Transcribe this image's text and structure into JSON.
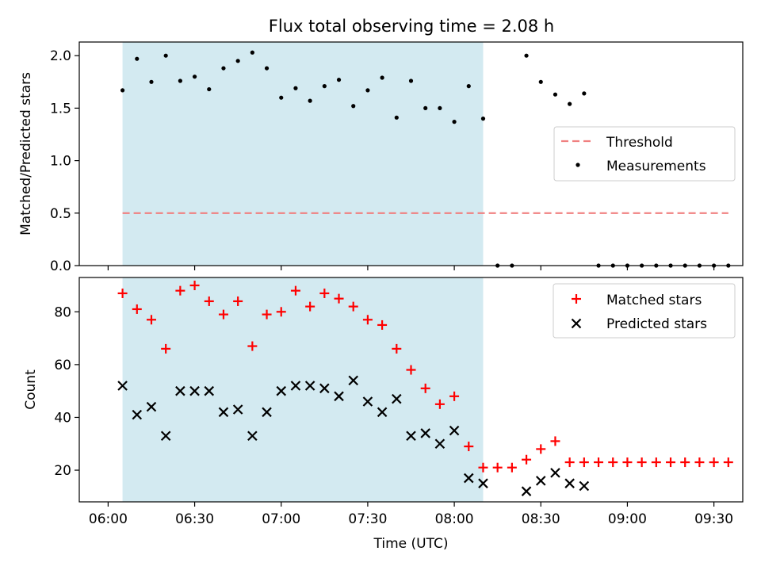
{
  "figure": {
    "title": "Flux total observing time = 2.08 h",
    "xlabel": "Time (UTC)",
    "x_ticks": [
      "06:00",
      "06:30",
      "07:00",
      "07:30",
      "08:00",
      "08:30",
      "09:00",
      "09:30"
    ]
  },
  "chart_data": [
    {
      "type": "scatter",
      "ylabel": "Matched/Predicted stars",
      "ylim": [
        0,
        2.13
      ],
      "y_ticks": [
        "0.0",
        "0.5",
        "1.0",
        "1.5",
        "2.0"
      ],
      "xlim": [
        "05:50",
        "09:40"
      ],
      "shaded_interval": [
        "06:05",
        "08:10"
      ],
      "shaded_color": "#d3eaf1",
      "threshold": {
        "name": "Threshold",
        "value": 0.5,
        "x_range": [
          "06:05",
          "09:35"
        ],
        "color": "#f08080"
      },
      "series": [
        {
          "name": "Measurements",
          "color": "#000000",
          "x": [
            "06:05",
            "06:10",
            "06:15",
            "06:20",
            "06:25",
            "06:30",
            "06:35",
            "06:40",
            "06:45",
            "06:50",
            "06:55",
            "07:00",
            "07:05",
            "07:10",
            "07:15",
            "07:20",
            "07:25",
            "07:30",
            "07:35",
            "07:40",
            "07:45",
            "07:50",
            "07:55",
            "08:00",
            "08:05",
            "08:10",
            "08:15",
            "08:20",
            "08:25",
            "08:30",
            "08:35",
            "08:40",
            "08:45",
            "08:50",
            "08:55",
            "09:00",
            "09:05",
            "09:10",
            "09:15",
            "09:20",
            "09:25",
            "09:30",
            "09:35"
          ],
          "y": [
            1.67,
            1.97,
            1.75,
            2.0,
            1.76,
            1.8,
            1.68,
            1.88,
            1.95,
            2.03,
            1.88,
            1.6,
            1.69,
            1.57,
            1.71,
            1.77,
            1.52,
            1.67,
            1.79,
            1.41,
            1.76,
            1.5,
            1.5,
            1.37,
            1.71,
            1.4,
            0.0,
            0.0,
            2.0,
            1.75,
            1.63,
            1.54,
            1.64,
            0.0,
            0.0,
            0.0,
            0.0,
            0.0,
            0.0,
            0.0,
            0.0,
            0.0,
            0.0
          ]
        }
      ],
      "legend": {
        "position": "center-right",
        "entries": [
          "Threshold",
          "Measurements"
        ]
      }
    },
    {
      "type": "scatter",
      "ylabel": "Count",
      "ylim": [
        8,
        93
      ],
      "y_ticks": [
        "20",
        "40",
        "60",
        "80"
      ],
      "xlim": [
        "05:50",
        "09:40"
      ],
      "shaded_interval": [
        "06:05",
        "08:10"
      ],
      "shaded_color": "#d3eaf1",
      "series": [
        {
          "name": "Matched stars",
          "marker": "plus",
          "color": "#ff0000",
          "x": [
            "06:05",
            "06:10",
            "06:15",
            "06:20",
            "06:25",
            "06:30",
            "06:35",
            "06:40",
            "06:45",
            "06:50",
            "06:55",
            "07:00",
            "07:05",
            "07:10",
            "07:15",
            "07:20",
            "07:25",
            "07:30",
            "07:35",
            "07:40",
            "07:45",
            "07:50",
            "07:55",
            "08:00",
            "08:05",
            "08:10",
            "08:15",
            "08:20",
            "08:25",
            "08:30",
            "08:35",
            "08:40",
            "08:45",
            "08:50",
            "08:55",
            "09:00",
            "09:05",
            "09:10",
            "09:15",
            "09:20",
            "09:25",
            "09:30",
            "09:35"
          ],
          "y": [
            87,
            81,
            77,
            66,
            88,
            90,
            84,
            79,
            84,
            67,
            79,
            80,
            88,
            82,
            87,
            85,
            82,
            77,
            75,
            66,
            58,
            51,
            45,
            48,
            29,
            21,
            21,
            21,
            24,
            28,
            31,
            23,
            23,
            23,
            23,
            23,
            23,
            23,
            23,
            23,
            23,
            23,
            23
          ]
        },
        {
          "name": "Predicted stars",
          "marker": "x",
          "color": "#000000",
          "x": [
            "06:05",
            "06:10",
            "06:15",
            "06:20",
            "06:25",
            "06:30",
            "06:35",
            "06:40",
            "06:45",
            "06:50",
            "06:55",
            "07:00",
            "07:05",
            "07:10",
            "07:15",
            "07:20",
            "07:25",
            "07:30",
            "07:35",
            "07:40",
            "07:45",
            "07:50",
            "07:55",
            "08:00",
            "08:05",
            "08:10",
            "08:25",
            "08:30",
            "08:35",
            "08:40",
            "08:45"
          ],
          "y": [
            52,
            41,
            44,
            33,
            50,
            50,
            50,
            42,
            43,
            33,
            42,
            50,
            52,
            52,
            51,
            48,
            54,
            46,
            42,
            47,
            33,
            34,
            30,
            35,
            17,
            15,
            12,
            16,
            19,
            15,
            14
          ]
        }
      ],
      "legend": {
        "position": "top-right",
        "entries": [
          "Matched stars",
          "Predicted stars"
        ]
      }
    }
  ]
}
